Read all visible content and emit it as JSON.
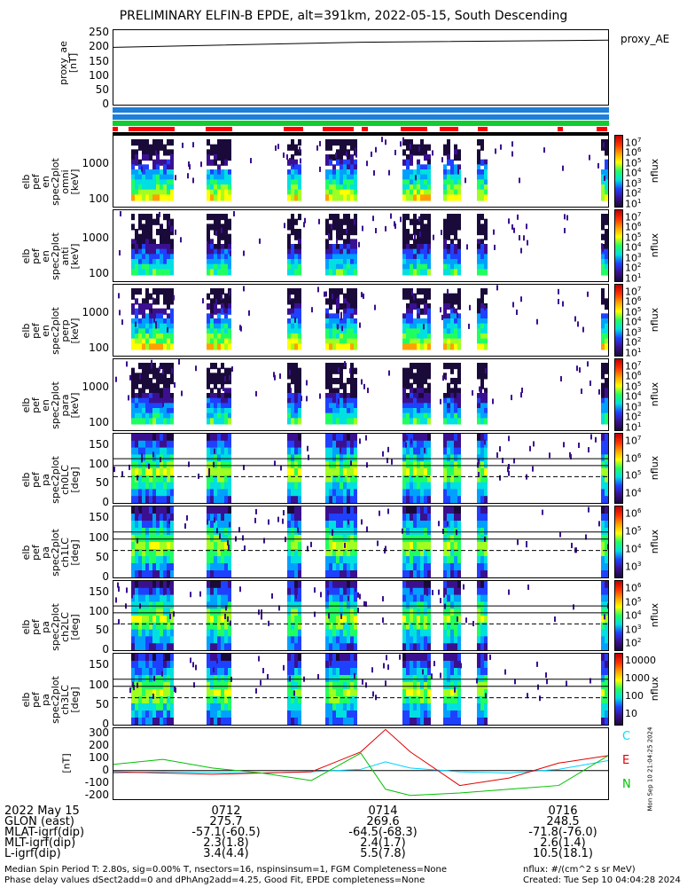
{
  "title": "PRELIMINARY ELFIN-B EPDE, alt=391km, 2022-05-15, South Descending",
  "ae_panel": {
    "ylabel": "proxy_ae\n[nT]",
    "legend": "proxy_AE",
    "ticks": [
      "250",
      "200",
      "150",
      "100",
      "50",
      "0"
    ]
  },
  "energy_panels": [
    {
      "ylabel": "elb\npef\nen\nspec2plot\nomni\n[keV]",
      "ticks": [
        "1000",
        "100"
      ],
      "cb_ticks": [
        "10^7",
        "10^6",
        "10^5",
        "10^4",
        "10^3",
        "10^2",
        "10^1"
      ],
      "cb_label": "nflux"
    },
    {
      "ylabel": "elb\npef\nen\nspec2plot\nanti\n[keV]",
      "ticks": [
        "1000",
        "100"
      ],
      "cb_ticks": [
        "10^7",
        "10^6",
        "10^5",
        "10^4",
        "10^3",
        "10^2",
        "10^1"
      ],
      "cb_label": "nflux"
    },
    {
      "ylabel": "elb\npef\nen\nspec2plot\nperp\n[keV]",
      "ticks": [
        "1000",
        "100"
      ],
      "cb_ticks": [
        "10^7",
        "10^6",
        "10^5",
        "10^4",
        "10^3",
        "10^2",
        "10^1"
      ],
      "cb_label": "nflux"
    },
    {
      "ylabel": "elb\npef\nen\nspec2plot\npara\n[keV]",
      "ticks": [
        "1000",
        "100"
      ],
      "cb_ticks": [
        "10^7",
        "10^6",
        "10^5",
        "10^4",
        "10^3",
        "10^2",
        "10^1"
      ],
      "cb_label": "nflux"
    }
  ],
  "pa_panels": [
    {
      "ylabel": "elb\npef\npa\nspec2plot\nch0LC\n[deg]",
      "ticks": [
        "150",
        "100",
        "50",
        "0"
      ],
      "cb_ticks": [
        "10^7",
        "10^6",
        "10^5",
        "10^4"
      ],
      "cb_label": "nflux"
    },
    {
      "ylabel": "elb\npef\npa\nspec2plot\nch1LC\n[deg]",
      "ticks": [
        "150",
        "100",
        "50",
        "0"
      ],
      "cb_ticks": [
        "10^6",
        "10^5",
        "10^4",
        "10^3"
      ],
      "cb_label": "nflux"
    },
    {
      "ylabel": "elb\npef\npa\nspec2plot\nch2LC\n[deg]",
      "ticks": [
        "150",
        "100",
        "50",
        "0"
      ],
      "cb_ticks": [
        "10^6",
        "10^5",
        "10^4",
        "10^3",
        "10^2"
      ],
      "cb_label": "nflux"
    },
    {
      "ylabel": "elb\npef\npa\nspec2plot\nch3LC\n[deg]",
      "ticks": [
        "150",
        "100",
        "50",
        "0"
      ],
      "cb_ticks": [
        "10000",
        "1000",
        "100",
        "10"
      ],
      "cb_label": "nflux"
    }
  ],
  "mag_panel": {
    "ylabel": "[nT]",
    "ticks": [
      "300",
      "200",
      "100",
      "0",
      "-100",
      "-200"
    ],
    "legend": [
      {
        "label": "C",
        "color": "#00e0ff"
      },
      {
        "label": "E",
        "color": "#e00000"
      },
      {
        "label": "N",
        "color": "#00c000"
      }
    ],
    "side_note": "Mon Sep 10 21:04:25 2024"
  },
  "chart_data": {
    "type": "line",
    "title": "PRELIMINARY ELFIN-B EPDE, alt=391km, 2022-05-15, South Descending",
    "x_ticks": [
      "0712",
      "0714",
      "0716"
    ],
    "series": [
      {
        "name": "proxy_AE",
        "x": [
          0,
          0.5,
          1
        ],
        "values": [
          200,
          218,
          225
        ]
      },
      {
        "name": "C",
        "x": [
          0,
          0.1,
          0.2,
          0.3,
          0.4,
          0.5,
          0.55,
          0.6,
          0.7,
          0.8,
          0.9,
          1
        ],
        "values": [
          -20,
          -10,
          -15,
          -20,
          -10,
          10,
          70,
          20,
          -10,
          -20,
          10,
          80
        ]
      },
      {
        "name": "E",
        "x": [
          0,
          0.1,
          0.2,
          0.3,
          0.4,
          0.5,
          0.55,
          0.6,
          0.7,
          0.8,
          0.9,
          1
        ],
        "values": [
          -10,
          -20,
          -30,
          -20,
          -10,
          150,
          330,
          150,
          -120,
          -60,
          60,
          120
        ]
      },
      {
        "name": "N",
        "x": [
          0,
          0.1,
          0.2,
          0.3,
          0.4,
          0.5,
          0.55,
          0.6,
          0.7,
          0.8,
          0.9,
          1
        ],
        "values": [
          50,
          90,
          20,
          -20,
          -80,
          140,
          -150,
          -200,
          -180,
          -150,
          -120,
          120
        ]
      }
    ],
    "ylim_ae": [
      0,
      260
    ],
    "ylim_mag": [
      -230,
      340
    ]
  },
  "footer": {
    "labels": [
      "2022 May 15",
      "GLON (east)",
      "MLAT-igrf(dip)",
      "MLT-igrf(dip)",
      "L-igrf(dip)"
    ],
    "col1": [
      "0712",
      "275.7",
      "-57.1(-60.5)",
      "2.3(1.8)",
      "3.4(4.4)"
    ],
    "col2": [
      "0714",
      "269.6",
      "-64.5(-68.3)",
      "2.4(1.7)",
      "5.5(7.8)"
    ],
    "col3": [
      "0716",
      "248.5",
      "-71.8(-76.0)",
      "2.6(1.4)",
      "10.5(18.1)"
    ],
    "note1": "Median Spin Period T: 2.80s, sig=0.00% T, nsectors=16, nspinsinsum=1, FGM Completeness=None",
    "note2": "Phase delay values dSect2add=0 and dPhAng2add=4.25, Good Fit, EPDE completeness=None",
    "units": "nflux: #/(cm^2 s sr MeV)",
    "created": "Created: Tue Sep 10 04:04:28 2024"
  }
}
